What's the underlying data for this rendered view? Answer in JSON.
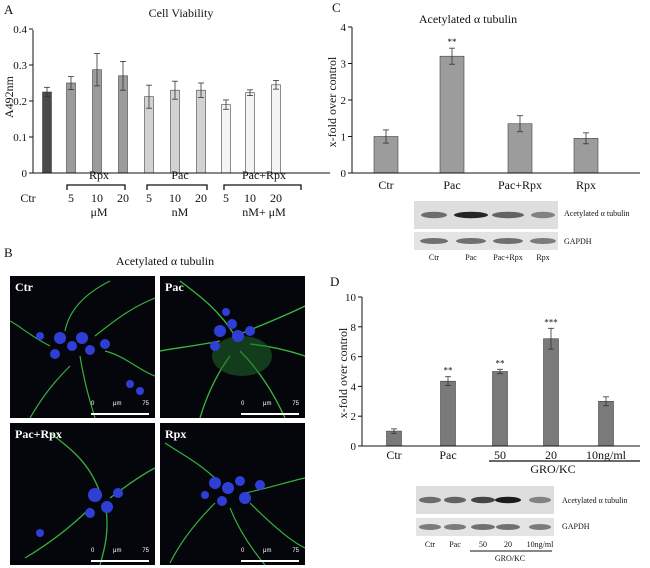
{
  "panels": {
    "A": {
      "letter": "A"
    },
    "B": {
      "letter": "B",
      "title": "Acetylated α tubulin",
      "images": [
        {
          "label": "Ctr"
        },
        {
          "label": "Pac"
        },
        {
          "label": "Pac+Rpx"
        },
        {
          "label": "Rpx"
        }
      ],
      "scalebar": {
        "start": "0",
        "unit": "μm",
        "end": "75"
      }
    },
    "C": {
      "letter": "C"
    },
    "D": {
      "letter": "D"
    }
  },
  "blots": {
    "C": {
      "bands": [
        "Acetylated α tubulin",
        "GAPDH"
      ],
      "lanes": [
        "Ctr",
        "Pac",
        "Pac+Rpx",
        "Rpx"
      ]
    },
    "D": {
      "bands": [
        "Acetylated α tubulin",
        "GAPDH"
      ],
      "lanes": [
        "Ctr",
        "Pac",
        "50",
        "20",
        "10ng/ml"
      ],
      "group_label": "GRO/KC"
    }
  },
  "colors": {
    "bar_dark": "#4a4a4a",
    "bar_gray": "#9c9c9c",
    "bar_light": "#d2d2d2",
    "bar_white": "#f4f4f4",
    "tubulin": "#35c23a",
    "dapi": "#2f3fd6"
  },
  "chart_data": [
    {
      "id": "A",
      "type": "bar",
      "title": "Cell Viability",
      "ylabel": "A492nm",
      "ylim": [
        0,
        0.4
      ],
      "yticks": [
        "0",
        "0.1",
        "0.2",
        "0.3",
        "0.4"
      ],
      "categories": [
        "Ctr",
        "5",
        "10",
        "20",
        "5",
        "10",
        "20",
        "5",
        "10",
        "20"
      ],
      "values": [
        0.225,
        0.25,
        0.287,
        0.27,
        0.212,
        0.23,
        0.23,
        0.19,
        0.223,
        0.245
      ],
      "errors": [
        0.013,
        0.018,
        0.045,
        0.04,
        0.032,
        0.025,
        0.02,
        0.013,
        0.008,
        0.012
      ],
      "groups": [
        {
          "label": "Rpx",
          "unit": "μM"
        },
        {
          "label": "Pac",
          "unit": "nM"
        },
        {
          "label": "Pac+Rpx",
          "unit": "nM+ μM"
        }
      ]
    },
    {
      "id": "C",
      "type": "bar",
      "title": "Acetylated α tubulin",
      "ylabel": "x-fold over control",
      "ylim": [
        0,
        4
      ],
      "yticks": [
        "0",
        "1",
        "2",
        "3",
        "4"
      ],
      "categories": [
        "Ctr",
        "Pac",
        "Pac+Rpx",
        "Rpx"
      ],
      "values": [
        1.0,
        3.2,
        1.35,
        0.95
      ],
      "errors": [
        0.18,
        0.22,
        0.22,
        0.15
      ],
      "significance": [
        "",
        "**",
        "",
        ""
      ]
    },
    {
      "id": "D",
      "type": "bar",
      "ylabel": "x-fold over control",
      "ylim": [
        0,
        10
      ],
      "yticks": [
        "0",
        "2",
        "4",
        "6",
        "8",
        "10"
      ],
      "categories": [
        "Ctr",
        "Pac",
        "50",
        "20",
        "10ng/ml"
      ],
      "values": [
        1.0,
        4.35,
        5.0,
        7.2,
        3.0
      ],
      "errors": [
        0.15,
        0.3,
        0.15,
        0.7,
        0.3
      ],
      "significance": [
        "",
        "**",
        "**",
        "***",
        ""
      ],
      "group_label": "GRO/KC"
    }
  ]
}
